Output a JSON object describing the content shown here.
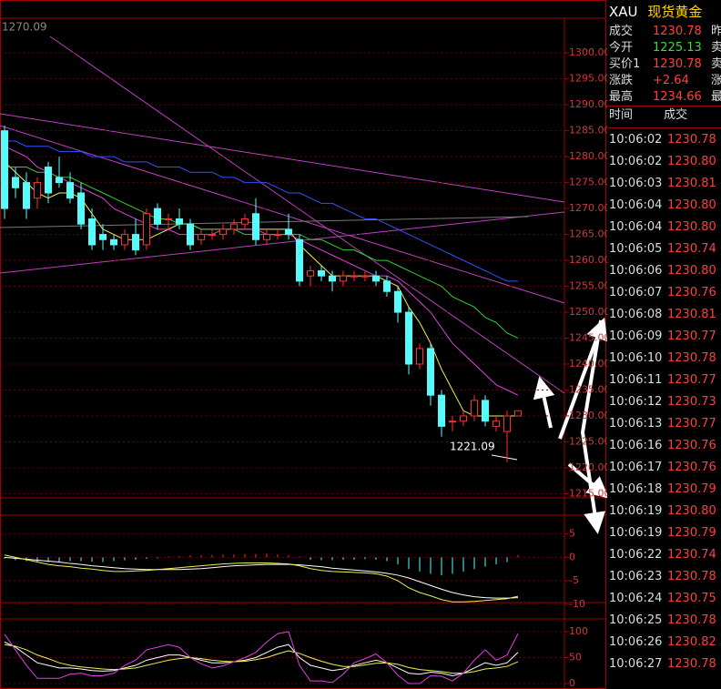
{
  "header": {
    "symbol": "XAU",
    "name": "现货黄金"
  },
  "quote": [
    {
      "label": "成交",
      "value": "1230.78",
      "extra": "昨"
    },
    {
      "label": "今开",
      "value": "1225.13",
      "extra": "卖"
    },
    {
      "label": "买价1",
      "value": "1230.78",
      "extra": "卖"
    },
    {
      "label": "涨跌",
      "value": "+2.64",
      "extra": "涨"
    },
    {
      "label": "最高",
      "value": "1234.66",
      "extra": "最"
    }
  ],
  "trades": {
    "columns": [
      "时间",
      "成交"
    ],
    "rows": [
      [
        "10:06:02",
        "1230.78"
      ],
      [
        "10:06:02",
        "1230.80"
      ],
      [
        "10:06:03",
        "1230.81"
      ],
      [
        "10:06:04",
        "1230.80"
      ],
      [
        "10:06:04",
        "1230.80"
      ],
      [
        "10:06:05",
        "1230.74"
      ],
      [
        "10:06:06",
        "1230.80"
      ],
      [
        "10:06:07",
        "1230.76"
      ],
      [
        "10:06:08",
        "1230.81"
      ],
      [
        "10:06:09",
        "1230.77"
      ],
      [
        "10:06:10",
        "1230.78"
      ],
      [
        "10:06:11",
        "1230.77"
      ],
      [
        "10:06:12",
        "1230.73"
      ],
      [
        "10:06:13",
        "1230.77"
      ],
      [
        "10:06:16",
        "1230.76"
      ],
      [
        "10:06:17",
        "1230.76"
      ],
      [
        "10:06:18",
        "1230.79"
      ],
      [
        "10:06:19",
        "1230.80"
      ],
      [
        "10:06:19",
        "1230.79"
      ],
      [
        "10:06:22",
        "1230.74"
      ],
      [
        "10:06:23",
        "1230.78"
      ],
      [
        "10:06:24",
        "1230.75"
      ],
      [
        "10:06:25",
        "1230.78"
      ],
      [
        "10:06:26",
        "1230.82"
      ],
      [
        "10:06:27",
        "1230.78"
      ]
    ]
  },
  "main_panel": {
    "top_label": "1270.09",
    "annotation": "1221.09",
    "ylim": [
      1214.2,
      1306.7
    ],
    "yticks": [
      {
        "value": 1300,
        "label": "1300.00"
      },
      {
        "value": 1295,
        "label": "1295.00"
      },
      {
        "value": 1290,
        "label": "1290.00"
      },
      {
        "value": 1285,
        "label": "1285.00"
      },
      {
        "value": 1280,
        "label": "1280.00"
      },
      {
        "value": 1275,
        "label": "1275.00"
      },
      {
        "value": 1270,
        "label": "1270.00"
      },
      {
        "value": 1265,
        "label": "1265.00"
      },
      {
        "value": 1260,
        "label": "1260.00"
      },
      {
        "value": 1255,
        "label": "1255.00"
      },
      {
        "value": 1250,
        "label": "1250.00"
      },
      {
        "value": 1245,
        "label": "1245.00"
      },
      {
        "value": 1240,
        "label": "1240.00"
      },
      {
        "value": 1235,
        "label": "1235.00"
      },
      {
        "value": 1230,
        "label": "1230.00"
      },
      {
        "value": 1225,
        "label": "1225.00"
      },
      {
        "value": 1220,
        "label": "1220.00"
      },
      {
        "value": 1215,
        "label": "1215.00"
      }
    ],
    "up_color": "#ff3030",
    "down_color": "#54fcfc",
    "candles": [
      [
        1285,
        1286,
        1268,
        1270
      ],
      [
        1276,
        1278,
        1272,
        1274
      ],
      [
        1275,
        1277,
        1268,
        1270
      ],
      [
        1272,
        1276,
        1270,
        1275
      ],
      [
        1278,
        1279,
        1271,
        1273
      ],
      [
        1276,
        1280,
        1274,
        1275
      ],
      [
        1275,
        1277,
        1271,
        1272
      ],
      [
        1273,
        1275,
        1266,
        1267
      ],
      [
        1268,
        1270,
        1262,
        1263
      ],
      [
        1265,
        1267,
        1262,
        1264
      ],
      [
        1264,
        1265,
        1262,
        1263
      ],
      [
        1263,
        1266,
        1262,
        1265
      ],
      [
        1265,
        1268,
        1261,
        1262
      ],
      [
        1263,
        1270,
        1262,
        1269
      ],
      [
        1270,
        1271,
        1266,
        1267
      ],
      [
        1268,
        1269,
        1266,
        1268
      ],
      [
        1268,
        1270,
        1266,
        1267
      ],
      [
        1267,
        1268,
        1262,
        1263
      ],
      [
        1264,
        1266,
        1263,
        1265
      ],
      [
        1265,
        1266,
        1264,
        1265
      ],
      [
        1265,
        1267,
        1264,
        1266
      ],
      [
        1266,
        1268,
        1265,
        1267
      ],
      [
        1267,
        1269,
        1266,
        1268
      ],
      [
        1269,
        1272,
        1263,
        1264
      ],
      [
        1264,
        1266,
        1263,
        1265
      ],
      [
        1265,
        1266,
        1264,
        1265
      ],
      [
        1266,
        1269,
        1264,
        1265
      ],
      [
        1264,
        1265,
        1255,
        1256
      ],
      [
        1257,
        1259,
        1255,
        1258
      ],
      [
        1258,
        1259,
        1256,
        1257
      ],
      [
        1257,
        1258,
        1254,
        1256
      ],
      [
        1256,
        1258,
        1255,
        1257
      ],
      [
        1257,
        1258,
        1256,
        1257
      ],
      [
        1257,
        1258,
        1256,
        1257
      ],
      [
        1257,
        1258,
        1255,
        1256
      ],
      [
        1256,
        1257,
        1253,
        1254
      ],
      [
        1254,
        1255,
        1248,
        1250
      ],
      [
        1250,
        1251,
        1238,
        1240
      ],
      [
        1240,
        1244,
        1239,
        1243
      ],
      [
        1243,
        1244,
        1232,
        1234
      ],
      [
        1234,
        1235,
        1226,
        1228
      ],
      [
        1229,
        1230,
        1227,
        1229
      ],
      [
        1229,
        1231,
        1228,
        1230
      ],
      [
        1230,
        1234,
        1229,
        1233
      ],
      [
        1233,
        1234,
        1228,
        1229
      ],
      [
        1228,
        1230,
        1227,
        1229
      ],
      [
        1227,
        1231,
        1221.09,
        1230
      ],
      [
        1230,
        1231,
        1230,
        1231
      ]
    ],
    "lines": [
      {
        "color": "#f0f050",
        "values": [
          1279,
          1277,
          1275,
          1273,
          1272,
          1273,
          1273,
          1272,
          1269,
          1266,
          1265,
          1264,
          1264,
          1264,
          1265,
          1266,
          1267,
          1267,
          1266,
          1266,
          1266,
          1266,
          1266,
          1266,
          1266,
          1266,
          1266,
          1263,
          1261,
          1259,
          1257,
          1257,
          1257,
          1257,
          1257,
          1256,
          1255,
          1251,
          1248,
          1244,
          1239,
          1235,
          1231,
          1230,
          1230,
          1230,
          1230,
          1230
        ]
      },
      {
        "color": "#e040e0",
        "values": [
          1282,
          1281,
          1280,
          1278,
          1277,
          1276,
          1275,
          1274,
          1273,
          1272,
          1270,
          1269,
          1268,
          1267,
          1266,
          1266,
          1265,
          1265,
          1265,
          1265,
          1266,
          1266,
          1266,
          1266,
          1265,
          1265,
          1265,
          1264,
          1263,
          1262,
          1261,
          1260,
          1259,
          1258,
          1257,
          1257,
          1256,
          1254,
          1252,
          1250,
          1247,
          1244,
          1242,
          1240,
          1238,
          1236,
          1235,
          1234
        ]
      },
      {
        "color": "#30d030",
        "values": [
          1278,
          1278,
          1278,
          1277,
          1277,
          1276,
          1276,
          1275,
          1274,
          1273,
          1272,
          1271,
          1270,
          1269,
          1268,
          1268,
          1267,
          1267,
          1266,
          1266,
          1266,
          1266,
          1265,
          1265,
          1265,
          1265,
          1265,
          1265,
          1264,
          1264,
          1263,
          1262,
          1262,
          1261,
          1260,
          1260,
          1259,
          1258,
          1257,
          1256,
          1255,
          1253,
          1252,
          1251,
          1249,
          1248,
          1246,
          1245
        ]
      },
      {
        "color": "#3050ff",
        "values": [
          1283,
          1283,
          1282,
          1282,
          1282,
          1281,
          1281,
          1281,
          1280,
          1280,
          1280,
          1279,
          1279,
          1279,
          1278,
          1278,
          1278,
          1277,
          1277,
          1277,
          1276,
          1276,
          1275,
          1275,
          1275,
          1274,
          1273,
          1273,
          1272,
          1271,
          1271,
          1270,
          1269,
          1268,
          1268,
          1267,
          1266,
          1265,
          1264,
          1263,
          1262,
          1261,
          1260,
          1259,
          1258,
          1257,
          1256,
          1256
        ]
      }
    ]
  },
  "macd_panel": {
    "ylim": [
      -10.8,
      9
    ],
    "yticks": [
      5,
      0,
      -5,
      -10
    ],
    "histogram": [
      -0.3,
      -0.6,
      -0.8,
      -1,
      -1,
      -0.9,
      -0.8,
      -0.8,
      -0.9,
      -1,
      -0.8,
      -0.6,
      -0.5,
      -0.3,
      -0.2,
      0.2,
      0.3,
      0.4,
      0.4,
      0.5,
      0.6,
      0.6,
      0.7,
      0.7,
      0.8,
      0.6,
      0.4,
      0.2,
      -0.5,
      -0.6,
      -0.6,
      -0.5,
      -0.5,
      -0.4,
      -0.5,
      -0.8,
      -1.5,
      -2.5,
      -3,
      -3.5,
      -3.8,
      -3.5,
      -3,
      -2.5,
      -2,
      -1.5,
      -1,
      0.5
    ],
    "lines": [
      {
        "color": "#ffffff",
        "values": [
          0,
          -0.2,
          -0.4,
          -0.6,
          -0.8,
          -1,
          -1.3,
          -1.5,
          -1.8,
          -2,
          -2.2,
          -2.4,
          -2.5,
          -2.6,
          -2.6,
          -2.6,
          -2.6,
          -2.5,
          -2.4,
          -2.2,
          -2,
          -1.8,
          -1.7,
          -1.6,
          -1.5,
          -1.5,
          -1.5,
          -1.6,
          -1.8,
          -2,
          -2.3,
          -2.5,
          -2.7,
          -2.9,
          -3.1,
          -3.4,
          -3.8,
          -4.4,
          -5.2,
          -6,
          -6.8,
          -7.5,
          -8,
          -8.4,
          -8.6,
          -8.7,
          -8.7,
          -8.6
        ]
      },
      {
        "color": "#f0f050",
        "values": [
          0.5,
          0,
          -0.5,
          -1,
          -1.5,
          -1.8,
          -2,
          -2.3,
          -2.5,
          -2.8,
          -3,
          -3,
          -2.9,
          -2.8,
          -2.6,
          -2.4,
          -2.2,
          -2,
          -1.8,
          -1.6,
          -1.4,
          -1.3,
          -1.2,
          -1.2,
          -1.2,
          -1.3,
          -1.4,
          -1.8,
          -2.4,
          -2.8,
          -3,
          -3.1,
          -3.2,
          -3.3,
          -3.5,
          -4,
          -5,
          -6.5,
          -7.5,
          -8.2,
          -9,
          -9.5,
          -9.5,
          -9.4,
          -9.2,
          -9,
          -8.8,
          -8.3
        ]
      }
    ]
  },
  "kdj_panel": {
    "ylim": [
      -10.5,
      124.5
    ],
    "yticks": [
      100,
      50,
      0
    ],
    "lines": [
      {
        "color": "#ffffff",
        "values": [
          80,
          70,
          55,
          40,
          35,
          30,
          30,
          28,
          25,
          24,
          25,
          30,
          35,
          45,
          50,
          55,
          55,
          50,
          45,
          40,
          40,
          42,
          45,
          50,
          60,
          70,
          75,
          50,
          35,
          30,
          25,
          28,
          35,
          40,
          45,
          40,
          30,
          20,
          18,
          22,
          20,
          15,
          20,
          30,
          40,
          35,
          40,
          60
        ]
      },
      {
        "color": "#f0f050",
        "values": [
          75,
          72,
          65,
          55,
          48,
          40,
          35,
          32,
          30,
          28,
          27,
          28,
          30,
          35,
          40,
          45,
          48,
          50,
          48,
          45,
          43,
          42,
          43,
          46,
          50,
          57,
          63,
          58,
          50,
          43,
          37,
          33,
          33,
          36,
          39,
          40,
          37,
          31,
          27,
          25,
          23,
          20,
          20,
          23,
          28,
          30,
          33,
          42
        ]
      },
      {
        "color": "#e040e0",
        "values": [
          95,
          65,
          35,
          10,
          10,
          10,
          18,
          20,
          15,
          15,
          20,
          35,
          45,
          65,
          70,
          75,
          70,
          50,
          38,
          30,
          34,
          42,
          50,
          60,
          80,
          96,
          100,
          35,
          5,
          5,
          2,
          18,
          40,
          48,
          57,
          40,
          16,
          0,
          0,
          15,
          14,
          5,
          20,
          45,
          65,
          45,
          55,
          96
        ]
      }
    ]
  }
}
